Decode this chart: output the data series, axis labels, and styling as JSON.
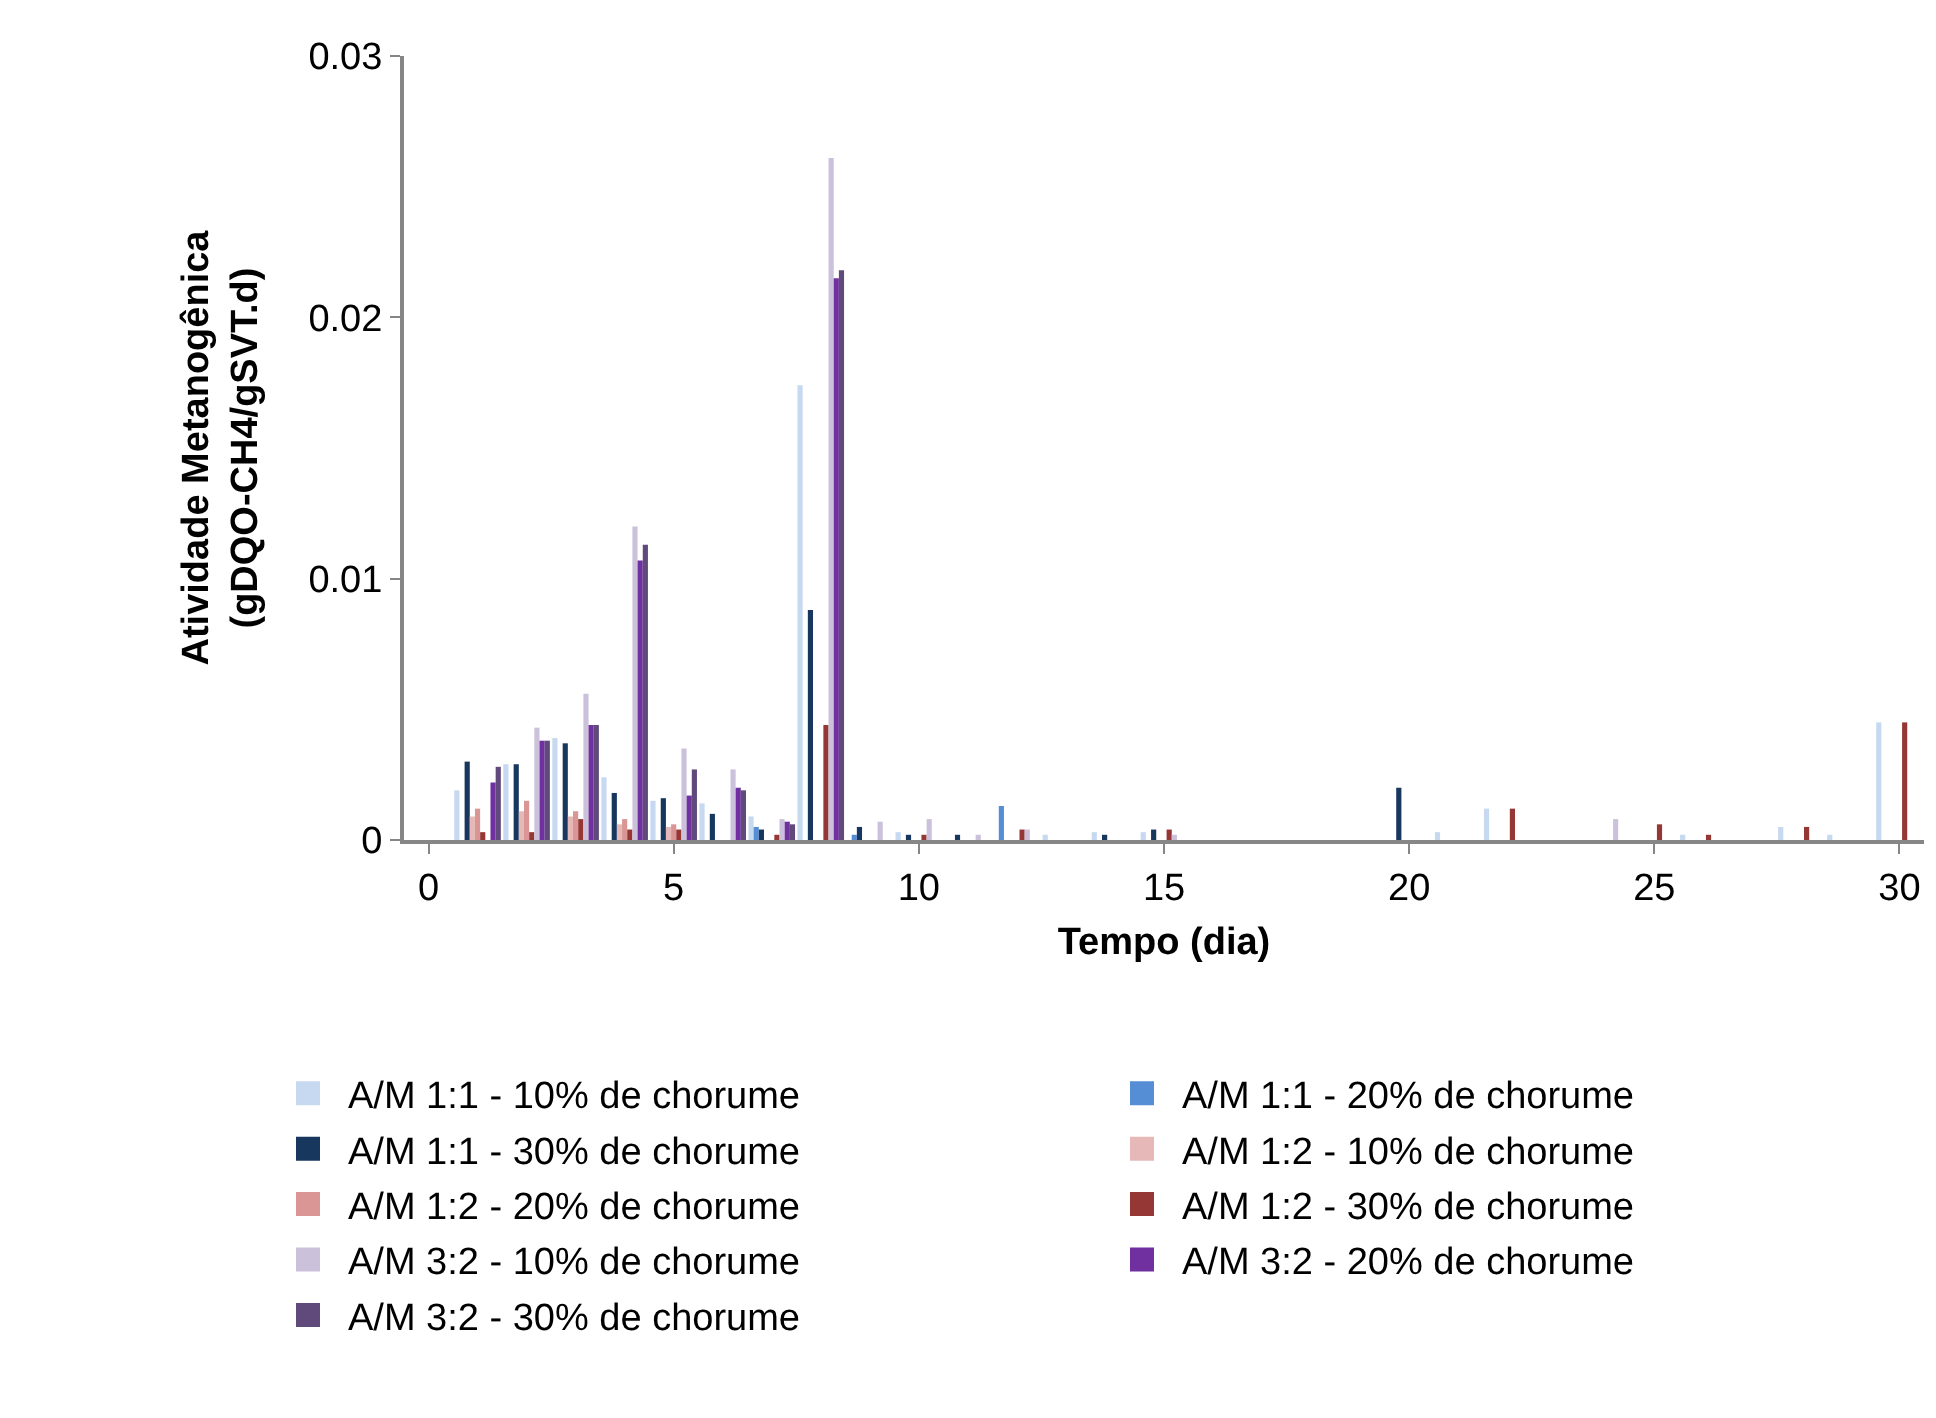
{
  "chart_data": {
    "type": "bar",
    "xlabel": "Tempo (dia)",
    "ylabel": "Atividade Metanogênica\n(gDQO-CH4/gSVT.d)",
    "x": [
      1,
      2,
      3,
      4,
      5,
      6,
      7,
      8,
      9,
      10,
      11,
      12,
      13,
      14,
      15,
      20,
      21,
      22,
      24,
      25,
      26,
      28,
      29,
      30
    ],
    "xlim": [
      -0.5,
      30.5
    ],
    "xticks": [
      0,
      5,
      10,
      15,
      20,
      25,
      30
    ],
    "ylim": [
      0,
      0.03
    ],
    "yticks": [
      0,
      0.01,
      0.02,
      0.03
    ],
    "grid": false,
    "legend": "bottom",
    "series": [
      {
        "name": "A/M 1:1 - 10% de chorume",
        "color": "#c6d9f1",
        "values": [
          0.0019,
          0.0029,
          0.0039,
          0.0024,
          0.0015,
          0.0014,
          0.0009,
          0.0174,
          null,
          0.0003,
          null,
          null,
          0.0002,
          0.0003,
          0.0003,
          null,
          0.0003,
          0.0012,
          null,
          null,
          0.0002,
          0.0005,
          0.0002,
          0.0045
        ]
      },
      {
        "name": "A/M 1:1 - 20% de chorume",
        "color": "#558ed5",
        "values": [
          null,
          null,
          null,
          null,
          null,
          null,
          0.0005,
          null,
          0.0002,
          null,
          null,
          0.0013,
          null,
          null,
          null,
          null,
          null,
          null,
          null,
          null,
          null,
          null,
          null,
          null
        ]
      },
      {
        "name": "A/M 1:1 - 30% de chorume",
        "color": "#17375e",
        "values": [
          0.003,
          0.0029,
          0.0037,
          0.0018,
          0.0016,
          0.001,
          0.0004,
          0.0088,
          0.0005,
          0.0002,
          0.0002,
          null,
          null,
          0.0002,
          0.0004,
          0.002,
          null,
          null,
          null,
          null,
          null,
          null,
          null,
          null
        ]
      },
      {
        "name": "A/M 1:2 - 10% de chorume",
        "color": "#e6b9b8",
        "values": [
          0.0009,
          0.0011,
          0.0009,
          0.0006,
          0.0005,
          null,
          null,
          null,
          null,
          null,
          null,
          null,
          null,
          null,
          null,
          null,
          null,
          null,
          null,
          null,
          null,
          null,
          null,
          null
        ]
      },
      {
        "name": "A/M 1:2 - 20% de chorume",
        "color": "#d99694",
        "values": [
          0.0012,
          0.0015,
          0.0011,
          0.0008,
          0.0006,
          null,
          null,
          null,
          null,
          null,
          null,
          null,
          null,
          null,
          null,
          null,
          null,
          null,
          null,
          null,
          null,
          null,
          null,
          null
        ]
      },
      {
        "name": "A/M 1:2 - 30% de chorume",
        "color": "#953735",
        "values": [
          0.0003,
          0.0003,
          0.0008,
          0.0004,
          0.0004,
          null,
          0.0002,
          0.0044,
          null,
          0.0002,
          null,
          0.0004,
          null,
          null,
          0.0004,
          null,
          null,
          0.0012,
          null,
          0.0006,
          0.0002,
          0.0005,
          null,
          0.0045
        ]
      },
      {
        "name": "A/M 3:2 - 10% de chorume",
        "color": "#ccc1da",
        "values": [
          null,
          0.0043,
          0.0056,
          0.012,
          0.0035,
          0.0027,
          0.0008,
          0.0261,
          0.0007,
          0.0008,
          0.0002,
          0.0004,
          null,
          null,
          0.0002,
          null,
          null,
          null,
          0.0008,
          null,
          null,
          null,
          null,
          null
        ]
      },
      {
        "name": "A/M 3:2 - 20% de chorume",
        "color": "#7030a0",
        "values": [
          0.0022,
          0.0038,
          0.0044,
          0.0107,
          0.0017,
          0.002,
          0.0007,
          0.0215,
          null,
          null,
          null,
          null,
          null,
          null,
          null,
          null,
          null,
          null,
          null,
          null,
          null,
          null,
          null,
          null
        ]
      },
      {
        "name": "A/M 3:2 - 30% de chorume",
        "color": "#604a7b",
        "values": [
          0.0028,
          0.0038,
          0.0044,
          0.0113,
          0.0027,
          0.0019,
          0.0006,
          0.0218,
          null,
          null,
          null,
          null,
          null,
          null,
          null,
          null,
          null,
          null,
          null,
          null,
          null,
          null,
          null,
          null
        ]
      }
    ]
  }
}
